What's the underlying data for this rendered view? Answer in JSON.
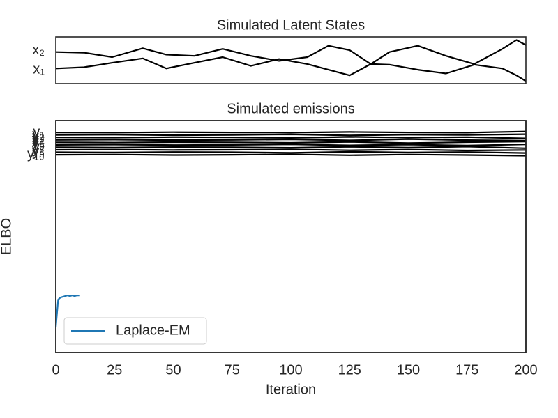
{
  "chart_data": [
    {
      "type": "line",
      "title": "Simulated Latent States",
      "x": [
        0,
        12,
        24,
        37,
        47,
        59,
        71,
        83,
        95,
        107,
        116,
        125,
        134,
        142,
        154,
        166,
        178,
        190,
        196,
        200
      ],
      "xlim": [
        0,
        200
      ],
      "ylim": [
        -2.2,
        5.2
      ],
      "yticks": [
        {
          "value": 0,
          "label": "x₁"
        },
        {
          "value": 3,
          "label": "x₂"
        }
      ],
      "series": [
        {
          "color": "#000000",
          "values": [
            0.2,
            0.4,
            1.1,
            1.8,
            0.2,
            1.1,
            2.0,
            0.6,
            1.7,
            0.9,
            0,
            -0.9,
            0.9,
            0.8,
            0,
            -0.6,
            0.8,
            0.2,
            -0.9,
            -1.8
          ]
        },
        {
          "color": "#000000",
          "values": [
            2.8,
            2.7,
            2.0,
            3.4,
            2.4,
            2.2,
            3.3,
            2.2,
            1.4,
            2.0,
            3.8,
            3.1,
            0.9,
            2.8,
            3.8,
            2.2,
            0.9,
            3.3,
            4.7,
            3.9
          ]
        }
      ]
    },
    {
      "type": "line",
      "title": "Simulated emissions",
      "x": [
        0,
        25,
        50,
        75,
        100,
        125,
        150,
        175,
        200
      ],
      "xlim": [
        0,
        200
      ],
      "ylim": [
        -89.8,
        3.8
      ],
      "yticks": [
        {
          "value": -1,
          "label": "y₁"
        },
        {
          "value": -2,
          "label": "y₂"
        },
        {
          "value": -3,
          "label": "y₃"
        },
        {
          "value": -4,
          "label": "y₄"
        },
        {
          "value": -5,
          "label": "y₅"
        },
        {
          "value": -6,
          "label": "y₆"
        },
        {
          "value": -7,
          "label": "y₇"
        },
        {
          "value": -8,
          "label": "y₈"
        },
        {
          "value": -9,
          "label": "y₉"
        },
        {
          "value": -10,
          "label": "y₁₀"
        }
      ],
      "series": [
        {
          "color": "#000000",
          "values": [
            -1.0,
            -1.1,
            -0.9,
            -1.0,
            -1.1,
            -0.8,
            -1.0,
            -1.1,
            -0.6
          ]
        },
        {
          "color": "#000000",
          "values": [
            -2.0,
            -1.9,
            -2.1,
            -2.0,
            -1.8,
            -2.2,
            -1.9,
            -2.0,
            -1.7
          ]
        },
        {
          "color": "#000000",
          "values": [
            -3.0,
            -3.1,
            -2.9,
            -3.0,
            -3.2,
            -2.8,
            -3.1,
            -2.9,
            -3.4
          ]
        },
        {
          "color": "#000000",
          "values": [
            -4.0,
            -3.9,
            -4.1,
            -4.0,
            -3.8,
            -4.2,
            -3.7,
            -4.1,
            -4.3
          ]
        },
        {
          "color": "#000000",
          "values": [
            -5.0,
            -5.1,
            -4.9,
            -5.0,
            -5.2,
            -4.8,
            -5.3,
            -4.9,
            -4.7
          ]
        },
        {
          "color": "#000000",
          "values": [
            -6.0,
            -5.9,
            -6.1,
            -6.0,
            -5.8,
            -6.2,
            -5.9,
            -6.3,
            -5.8
          ]
        },
        {
          "color": "#000000",
          "values": [
            -7.0,
            -7.1,
            -6.9,
            -7.0,
            -7.2,
            -6.8,
            -7.1,
            -6.7,
            -7.4
          ]
        },
        {
          "color": "#000000",
          "values": [
            -8.0,
            -7.9,
            -8.1,
            -8.0,
            -7.8,
            -8.2,
            -7.9,
            -8.3,
            -8.1
          ]
        },
        {
          "color": "#000000",
          "values": [
            -9.0,
            -9.1,
            -8.9,
            -9.0,
            -9.2,
            -8.8,
            -9.1,
            -8.9,
            -9.3
          ]
        },
        {
          "color": "#000000",
          "values": [
            -10.0,
            -9.9,
            -10.1,
            -10.0,
            -9.8,
            -10.2,
            -9.9,
            -10.1,
            -10.4
          ]
        }
      ]
    },
    {
      "type": "line",
      "xlabel": "Iteration",
      "ylabel": "ELBO",
      "x": [
        0,
        1,
        2,
        3,
        4,
        5,
        6,
        7,
        8,
        9,
        10
      ],
      "xlim": [
        0,
        200
      ],
      "ylim": [
        0,
        100
      ],
      "xticks": [
        0,
        25,
        50,
        75,
        100,
        125,
        150,
        175,
        200
      ],
      "legend": "lower left",
      "series": [
        {
          "name": "Laplace-EM",
          "color": "#1f77b4",
          "values": [
            10.8,
            22.8,
            23.7,
            24.0,
            24.3,
            24.6,
            24.3,
            24.6,
            24.3,
            24.6,
            24.6
          ]
        }
      ]
    }
  ]
}
